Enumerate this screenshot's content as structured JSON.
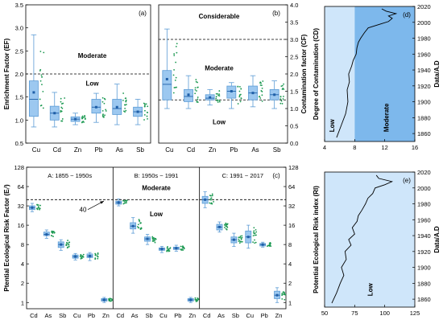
{
  "chart_data": [
    {
      "panel": "a",
      "type": "box",
      "categories": [
        "Cu",
        "Cd",
        "Zn",
        "Pb",
        "As",
        "Sb"
      ],
      "ylabel": "Enrichment Factor (EF)",
      "ylim": [
        0.5,
        3.5
      ],
      "yticks": [
        "0.5",
        "1.0",
        "1.5",
        "2.0",
        "2.5",
        "3.0",
        "3.5"
      ],
      "threshold": 2.0,
      "zone_labels": [
        "Moderate",
        "Low"
      ],
      "boxes": [
        {
          "min": 0.85,
          "q1": 1.08,
          "median": 1.45,
          "q3": 1.85,
          "max": 2.85,
          "mean": 1.6
        },
        {
          "min": 0.85,
          "q1": 1.0,
          "median": 1.15,
          "q3": 1.3,
          "max": 1.6,
          "mean": 1.15
        },
        {
          "min": 0.9,
          "q1": 0.97,
          "median": 1.02,
          "q3": 1.07,
          "max": 1.15,
          "mean": 1.02
        },
        {
          "min": 0.95,
          "q1": 1.15,
          "median": 1.28,
          "q3": 1.45,
          "max": 1.58,
          "mean": 1.28
        },
        {
          "min": 0.9,
          "q1": 1.12,
          "median": 1.25,
          "q3": 1.45,
          "max": 1.78,
          "mean": 1.28
        },
        {
          "min": 0.9,
          "q1": 1.08,
          "median": 1.18,
          "q3": 1.28,
          "max": 1.45,
          "mean": 1.18
        }
      ]
    },
    {
      "panel": "b",
      "type": "box",
      "categories": [
        "Cu",
        "Cd",
        "Zn",
        "Pb",
        "As",
        "Sb"
      ],
      "ylabel": "Contamination factor (CF)",
      "ylim": [
        0.0,
        4.0
      ],
      "yticks": [
        "0.0",
        "0.5",
        "1.0",
        "1.5",
        "2.0",
        "2.5",
        "3.0",
        "3.5",
        "4.0"
      ],
      "thresholds": [
        3.0,
        1.25
      ],
      "zone_labels": [
        "Considerable",
        "Moderate",
        "Low"
      ],
      "boxes": [
        {
          "min": 1.0,
          "q1": 1.25,
          "median": 1.7,
          "q3": 2.1,
          "max": 3.3,
          "mean": 1.85
        },
        {
          "min": 1.0,
          "q1": 1.2,
          "median": 1.35,
          "q3": 1.55,
          "max": 1.95,
          "mean": 1.4
        },
        {
          "min": 1.1,
          "q1": 1.25,
          "median": 1.3,
          "q3": 1.4,
          "max": 1.55,
          "mean": 1.32
        },
        {
          "min": 1.0,
          "q1": 1.3,
          "median": 1.5,
          "q3": 1.65,
          "max": 1.75,
          "mean": 1.5
        },
        {
          "min": 1.05,
          "q1": 1.25,
          "median": 1.45,
          "q3": 1.65,
          "max": 1.95,
          "mean": 1.45
        },
        {
          "min": 1.0,
          "q1": 1.25,
          "median": 1.4,
          "q3": 1.55,
          "max": 1.8,
          "mean": 1.4
        }
      ]
    },
    {
      "panel": "c",
      "type": "box",
      "ylabel": "Ptential Ecological Risk Factor (Eᵣⁱ)",
      "yscale": "log2",
      "ylim": [
        0.8,
        128
      ],
      "yticks": [
        1,
        2,
        4,
        8,
        16,
        32,
        64,
        128
      ],
      "threshold": 40,
      "threshold_label": "40",
      "zone_labels": [
        "Moderate",
        "Low"
      ],
      "groups": [
        {
          "title": "A: 1855 ~ 1950s",
          "categories": [
            "Cd",
            "As",
            "Sb",
            "Cu",
            "Pb",
            "Zn"
          ],
          "boxes": [
            {
              "min": 26,
              "q1": 28,
              "median": 30,
              "q3": 32,
              "max": 35,
              "mean": 30
            },
            {
              "min": 10,
              "q1": 11,
              "median": 11.5,
              "q3": 12.5,
              "max": 13.5,
              "mean": 11.5
            },
            {
              "min": 6.5,
              "q1": 7.2,
              "median": 8,
              "q3": 8.8,
              "max": 9.5,
              "mean": 8
            },
            {
              "min": 4.6,
              "q1": 4.9,
              "median": 5.2,
              "q3": 5.5,
              "max": 5.8,
              "mean": 5.2
            },
            {
              "min": 4.5,
              "q1": 5,
              "median": 5.3,
              "q3": 5.7,
              "max": 6,
              "mean": 5.3
            },
            {
              "min": 1.0,
              "q1": 1.05,
              "median": 1.1,
              "q3": 1.15,
              "max": 1.2,
              "mean": 1.1
            }
          ]
        },
        {
          "title": "B: 1950s ~ 1991",
          "categories": [
            "Cd",
            "As",
            "Sb",
            "Cu",
            "Pb",
            "Zn"
          ],
          "boxes": [
            {
              "min": 32,
              "q1": 34,
              "median": 36,
              "q3": 38,
              "max": 41,
              "mean": 36
            },
            {
              "min": 12,
              "q1": 14,
              "median": 15.5,
              "q3": 17.5,
              "max": 21,
              "mean": 15.5
            },
            {
              "min": 8,
              "q1": 9,
              "median": 9.8,
              "q3": 10.5,
              "max": 11.5,
              "mean": 9.8
            },
            {
              "min": 6,
              "q1": 6.5,
              "median": 6.8,
              "q3": 7.1,
              "max": 7.5,
              "mean": 6.8
            },
            {
              "min": 6.3,
              "q1": 6.7,
              "median": 7,
              "q3": 7.3,
              "max": 7.8,
              "mean": 7
            },
            {
              "min": 1.0,
              "q1": 1.05,
              "median": 1.1,
              "q3": 1.15,
              "max": 1.2,
              "mean": 1.1
            }
          ]
        },
        {
          "title": "C: 1991 ~ 2017",
          "categories": [
            "Cd",
            "As",
            "Sb",
            "Cu",
            "Pb",
            "Zn"
          ],
          "boxes": [
            {
              "min": 30,
              "q1": 35,
              "median": 40,
              "q3": 45,
              "max": 53,
              "mean": 40
            },
            {
              "min": 12.5,
              "q1": 13.5,
              "median": 15,
              "q3": 16.5,
              "max": 18,
              "mean": 15
            },
            {
              "min": 7.5,
              "q1": 8.5,
              "median": 9.5,
              "q3": 10.5,
              "max": 12,
              "mean": 9.5
            },
            {
              "min": 7,
              "q1": 8.5,
              "median": 10.5,
              "q3": 13,
              "max": 16,
              "mean": 10.5
            },
            {
              "min": 7.3,
              "q1": 7.6,
              "median": 8,
              "q3": 8.3,
              "max": 8.7,
              "mean": 8
            },
            {
              "min": 1.0,
              "q1": 1.15,
              "median": 1.3,
              "q3": 1.5,
              "max": 1.7,
              "mean": 1.3
            }
          ]
        }
      ]
    },
    {
      "panel": "d",
      "type": "line",
      "xlabel": "",
      "ylabel": "Data/A.D",
      "ylabel_left": "Degree of Contamination (CD)",
      "xlim": [
        4,
        16
      ],
      "xticks": [
        4,
        8,
        12,
        16
      ],
      "ylim": [
        1850,
        2020
      ],
      "yticks": [
        1860,
        1880,
        1900,
        1920,
        1940,
        1960,
        1980,
        2000,
        2020
      ],
      "threshold": 8,
      "zone_labels": [
        "Low",
        "Moderate"
      ],
      "points": [
        {
          "x": 5.6,
          "y": 1855
        },
        {
          "x": 6.2,
          "y": 1870
        },
        {
          "x": 6.8,
          "y": 1885
        },
        {
          "x": 7.1,
          "y": 1900
        },
        {
          "x": 7.0,
          "y": 1915
        },
        {
          "x": 7.3,
          "y": 1925
        },
        {
          "x": 7.2,
          "y": 1935
        },
        {
          "x": 7.6,
          "y": 1945
        },
        {
          "x": 7.8,
          "y": 1952
        },
        {
          "x": 8.2,
          "y": 1960
        },
        {
          "x": 8.3,
          "y": 1968
        },
        {
          "x": 8.5,
          "y": 1975
        },
        {
          "x": 8.8,
          "y": 1980
        },
        {
          "x": 9.3,
          "y": 1987
        },
        {
          "x": 9.8,
          "y": 1993
        },
        {
          "x": 11.5,
          "y": 1998
        },
        {
          "x": 12.5,
          "y": 2001
        },
        {
          "x": 13.0,
          "y": 2005
        },
        {
          "x": 12.5,
          "y": 2008
        },
        {
          "x": 13.5,
          "y": 2011
        },
        {
          "x": 12.2,
          "y": 2014
        },
        {
          "x": 11.6,
          "y": 2017
        }
      ]
    },
    {
      "panel": "e",
      "type": "line",
      "ylabel": "Data/A.D",
      "ylabel_left": "Potential Ecological Risk index (RI)",
      "xlim": [
        50,
        125
      ],
      "xticks": [
        50,
        75,
        100,
        125
      ],
      "ylim": [
        1850,
        2020
      ],
      "yticks": [
        1860,
        1880,
        1900,
        1920,
        1940,
        1960,
        1980,
        2000,
        2020
      ],
      "zone_labels": [
        "Low"
      ],
      "points": [
        {
          "x": 56,
          "y": 1855
        },
        {
          "x": 60,
          "y": 1868
        },
        {
          "x": 63,
          "y": 1880
        },
        {
          "x": 66,
          "y": 1890
        },
        {
          "x": 64,
          "y": 1900
        },
        {
          "x": 68,
          "y": 1910
        },
        {
          "x": 67,
          "y": 1920
        },
        {
          "x": 72,
          "y": 1928
        },
        {
          "x": 70,
          "y": 1935
        },
        {
          "x": 75,
          "y": 1942
        },
        {
          "x": 73,
          "y": 1950
        },
        {
          "x": 77,
          "y": 1958
        },
        {
          "x": 78,
          "y": 1965
        },
        {
          "x": 81,
          "y": 1972
        },
        {
          "x": 84,
          "y": 1980
        },
        {
          "x": 86,
          "y": 1987
        },
        {
          "x": 90,
          "y": 1993
        },
        {
          "x": 92,
          "y": 2000
        },
        {
          "x": 100,
          "y": 2004
        },
        {
          "x": 106,
          "y": 2008
        },
        {
          "x": 95,
          "y": 2012
        },
        {
          "x": 93,
          "y": 2016
        }
      ]
    }
  ]
}
